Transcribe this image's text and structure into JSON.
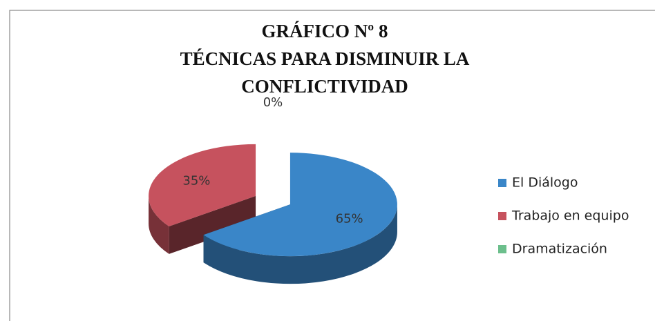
{
  "chart_data": {
    "type": "pie",
    "title": [
      "GRÁFICO Nº 8",
      "TÉCNICAS PARA DISMINUIR LA",
      "CONFLICTIVIDAD"
    ],
    "categories": [
      "El Diálogo",
      "Trabajo en equipo",
      "Dramatización"
    ],
    "values": [
      65,
      35,
      0
    ],
    "value_labels": [
      "65%",
      "35%",
      "0%"
    ],
    "colors": [
      "#3a86c8",
      "#c6525e",
      "#6cbf8c"
    ],
    "legend": "right"
  }
}
